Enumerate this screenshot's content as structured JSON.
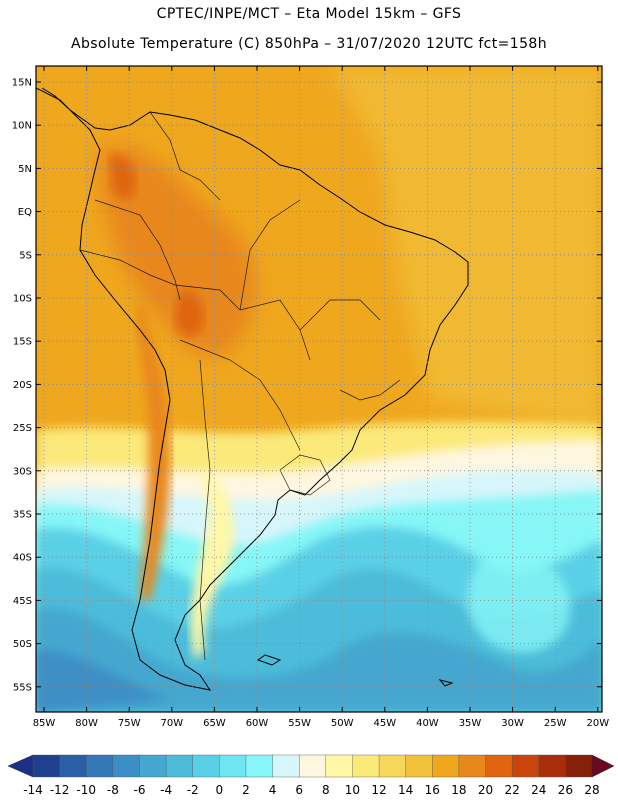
{
  "header": {
    "line1": "CPTEC/INPE/MCT –  Eta Model 15km – GFS",
    "line2": "Absolute Temperature (C) 850hPa – 31/07/2020 12UTC fct=158h"
  },
  "map": {
    "lat_labels": [
      "15N",
      "10N",
      "5N",
      "EQ",
      "5S",
      "10S",
      "15S",
      "20S",
      "25S",
      "30S",
      "35S",
      "40S",
      "45S",
      "50S",
      "55S"
    ],
    "lon_labels": [
      "85W",
      "80W",
      "75W",
      "70W",
      "65W",
      "60W",
      "55W",
      "50W",
      "45W",
      "40W",
      "35W",
      "30W",
      "25W",
      "20W"
    ]
  },
  "colorbar": {
    "labels": [
      "-14",
      "-12",
      "-10",
      "-8",
      "-6",
      "-4",
      "-2",
      "0",
      "2",
      "4",
      "6",
      "8",
      "10",
      "12",
      "14",
      "16",
      "18",
      "20",
      "22",
      "24",
      "26",
      "28"
    ],
    "colors": [
      "#1f3f8f",
      "#2a5ea6",
      "#3478b8",
      "#3c8fc6",
      "#44a7cf",
      "#4cbcd9",
      "#5ad0e6",
      "#6ee6f2",
      "#86f6f6",
      "#d6f6fb",
      "#fff6e0",
      "#fff7a6",
      "#fbe97a",
      "#f7d75a",
      "#f2c13a",
      "#efa71e",
      "#e8871a",
      "#e0650e",
      "#c9450c",
      "#a82e0a",
      "#862008"
    ],
    "low_arrow": "#1b2f85",
    "high_arrow": "#6a0a20"
  }
}
